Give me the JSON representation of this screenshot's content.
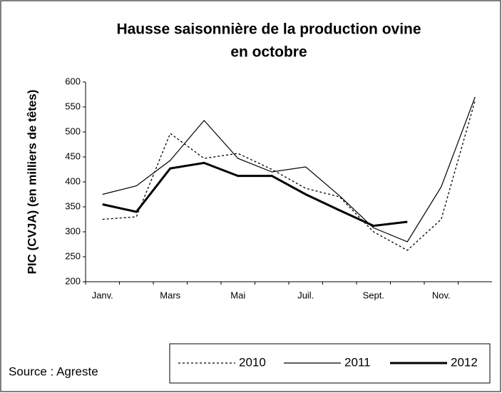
{
  "chart_data": {
    "type": "line",
    "title": [
      "Hausse saisonnière de la production ovine",
      "en octobre"
    ],
    "y_label": "PIC (CVJA) (en milliers de têtes)",
    "source": "Source : Agreste",
    "categories": [
      "Janv.",
      null,
      "Mars",
      null,
      "Mai",
      null,
      "Juil.",
      null,
      "Sept.",
      null,
      "Nov.",
      null
    ],
    "ylim": [
      200,
      600
    ],
    "yticks": [
      200,
      250,
      300,
      350,
      400,
      450,
      500,
      550,
      600
    ],
    "grid": false,
    "legend": "bottom-right",
    "series": [
      {
        "name": "2010",
        "color": "#000000",
        "dash": "3,3",
        "width": 1.3,
        "values": [
          325,
          330,
          497,
          447,
          457,
          425,
          387,
          370,
          300,
          263,
          325,
          563
        ]
      },
      {
        "name": "2011",
        "color": "#000000",
        "dash": "none",
        "width": 1.2,
        "values": [
          375,
          392,
          443,
          523,
          447,
          420,
          430,
          372,
          308,
          280,
          390,
          570
        ]
      },
      {
        "name": "2012",
        "color": "#000000",
        "dash": "none",
        "width": 3,
        "values": [
          355,
          340,
          427,
          438,
          412,
          412,
          375,
          343,
          312,
          320,
          null,
          null
        ]
      }
    ]
  }
}
